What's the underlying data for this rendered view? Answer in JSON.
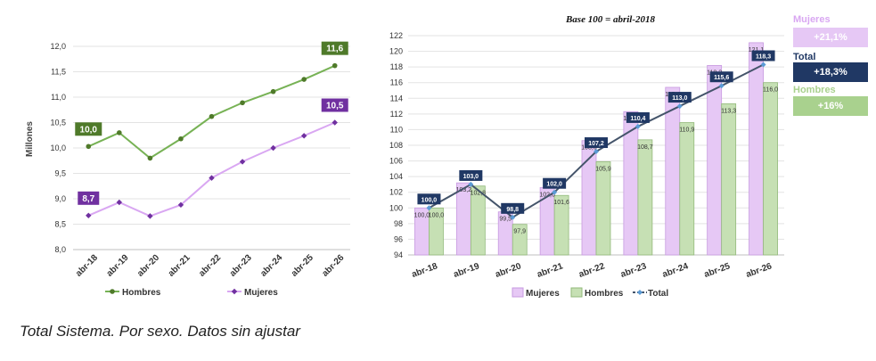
{
  "caption": "Total Sistema. Por sexo. Datos sin ajustar",
  "colors": {
    "hombres_line": "#77b255",
    "hombres_label": "#4f7a2a",
    "mujeres_line": "#d9a7f2",
    "mujeres_label": "#7030a0",
    "mujeres_bar": "#e6c8f5",
    "hombres_bar": "#c6e0b4",
    "total_line": "#44546a",
    "total_label": "#203864",
    "grid": "#e3e3e3"
  },
  "summary": {
    "mujeres": {
      "label": "Mujeres",
      "value": "+21,1%",
      "label_color": "#d9a7f2",
      "box_color": "#e6c8f5"
    },
    "total": {
      "label": "Total",
      "value": "+18,3%",
      "label_color": "#203864",
      "box_color": "#203864"
    },
    "hombres": {
      "label": "Hombres",
      "value": "+16%",
      "label_color": "#a9d18e",
      "box_color": "#a9d18e"
    }
  },
  "chart_data": [
    {
      "type": "line",
      "ylabel": "Millones",
      "ylim": [
        8.0,
        12.0
      ],
      "yticks": [
        "8,0",
        "8,5",
        "9,0",
        "9,5",
        "10,0",
        "10,5",
        "11,0",
        "11,5",
        "12,0"
      ],
      "categories": [
        "abr-18",
        "abr-19",
        "abr-20",
        "abr-21",
        "abr-22",
        "abr-23",
        "abr-24",
        "abr-25",
        "abr-26"
      ],
      "series": [
        {
          "name": "Hombres",
          "values": [
            10.03,
            10.3,
            9.8,
            10.18,
            10.62,
            10.89,
            11.11,
            11.35,
            11.62
          ],
          "labels": {
            "0": "10,0",
            "8": "11,6"
          }
        },
        {
          "name": "Mujeres",
          "values": [
            8.67,
            8.93,
            8.66,
            8.88,
            9.41,
            9.73,
            10.0,
            10.24,
            10.5
          ],
          "labels": {
            "0": "8,7",
            "8": "10,5"
          }
        }
      ],
      "legend": "bottom",
      "grid": true
    },
    {
      "type": "bar",
      "title": "Base 100 = abril-2018",
      "ylim": [
        94,
        122
      ],
      "yticks": [
        "94",
        "96",
        "98",
        "100",
        "102",
        "104",
        "106",
        "108",
        "110",
        "112",
        "114",
        "116",
        "118",
        "120",
        "122"
      ],
      "categories": [
        "abr-18",
        "abr-19",
        "abr-20",
        "abr-21",
        "abr-22",
        "abr-23",
        "abr-24",
        "abr-25",
        "abr-26"
      ],
      "series": [
        {
          "name": "Mujeres",
          "type": "bar",
          "values": [
            100.0,
            103.2,
            99.5,
            102.6,
            108.6,
            112.3,
            115.4,
            118.2,
            121.1
          ],
          "labels": [
            "100,0",
            "103,2",
            "99,5",
            "102,6",
            "108,6",
            "112,3",
            "115,4",
            "118,2",
            "121,1"
          ]
        },
        {
          "name": "Hombres",
          "type": "bar",
          "values": [
            100.0,
            102.8,
            97.9,
            101.6,
            105.9,
            108.7,
            110.9,
            113.3,
            116.0
          ],
          "labels": [
            "100,0",
            "102,8",
            "97,9",
            "101,6",
            "105,9",
            "108,7",
            "110,9",
            "113,3",
            "116,0"
          ]
        },
        {
          "name": "Total",
          "type": "line",
          "values": [
            100.0,
            103.0,
            98.8,
            102.0,
            107.2,
            110.4,
            113.0,
            115.6,
            118.3
          ],
          "labels": [
            "100,0",
            "103,0",
            "98,8",
            "102,0",
            "107,2",
            "110,4",
            "113,0",
            "115,6",
            "118,3"
          ]
        }
      ],
      "legend": "bottom",
      "grid": true
    }
  ]
}
